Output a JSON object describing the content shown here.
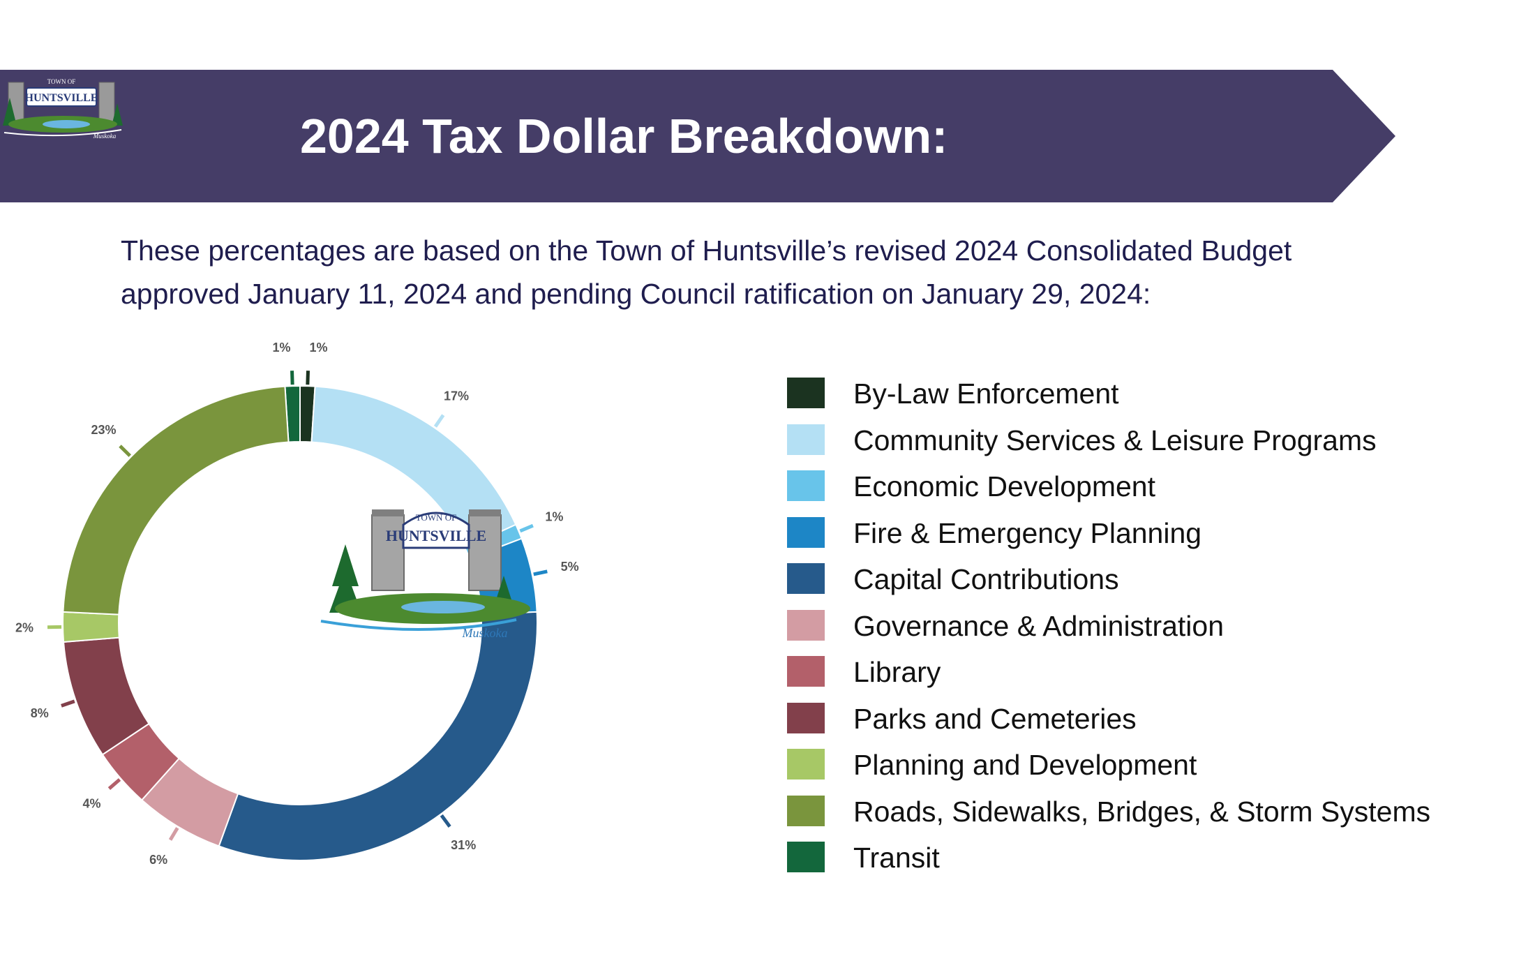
{
  "header": {
    "title": "2024 Tax Dollar Breakdown:",
    "banner_color": "#453d67",
    "logo": {
      "top_text": "TOWN OF",
      "name": "HUNTSVILLE",
      "script": "Muskoka"
    }
  },
  "intro": {
    "line1": "These percentages are based on the Town of Huntsville’s revised 2024 Consolidated Budget",
    "line2": "approved January 11, 2024 and pending Council ratification on January 29, 2024:"
  },
  "chart_data": {
    "type": "pie",
    "donut": true,
    "title": "",
    "legend_position": "right",
    "slices": [
      {
        "label": "By-Law Enforcement",
        "value": 1,
        "display": "1%",
        "color": "#1b3320"
      },
      {
        "label": "Community Services & Leisure Programs",
        "value": 17,
        "display": "17%",
        "color": "#b4e0f4"
      },
      {
        "label": "Economic Development",
        "value": 1,
        "display": "1%",
        "color": "#68c4ea"
      },
      {
        "label": "Fire & Emergency Planning",
        "value": 5,
        "display": "5%",
        "color": "#1d86c6"
      },
      {
        "label": "Capital Contributions",
        "value": 31,
        "display": "31%",
        "color": "#265a8b"
      },
      {
        "label": "Governance & Administration",
        "value": 6,
        "display": "6%",
        "color": "#d39ca3"
      },
      {
        "label": "Library",
        "value": 4,
        "display": "4%",
        "color": "#b3606a"
      },
      {
        "label": "Parks and Cemeteries",
        "value": 8,
        "display": "8%",
        "color": "#82404b"
      },
      {
        "label": "Planning and Development",
        "value": 2,
        "display": "2%",
        "color": "#a7c866"
      },
      {
        "label": "Roads, Sidewalks, Bridges, & Storm Systems",
        "value": 23,
        "display": "23%",
        "color": "#7a953d"
      },
      {
        "label": "Transit",
        "value": 1,
        "display": "1%",
        "color": "#13673c"
      }
    ]
  }
}
